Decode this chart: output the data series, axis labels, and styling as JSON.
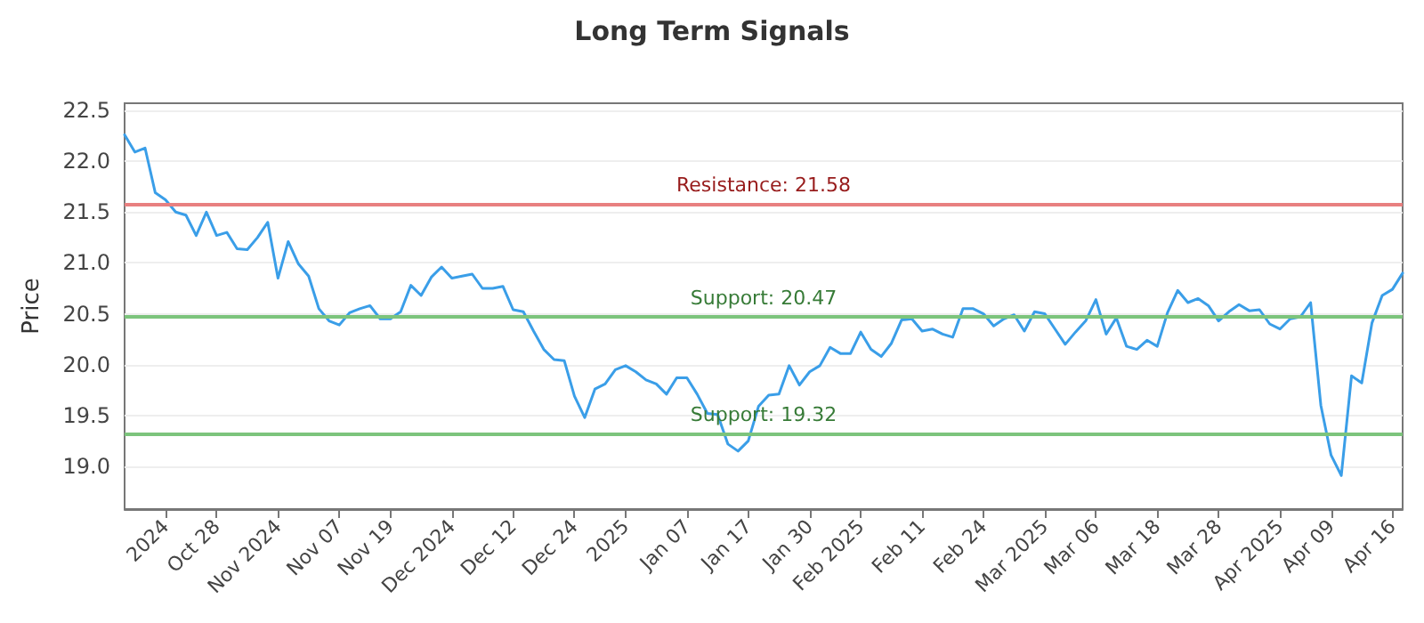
{
  "chart_data": {
    "type": "line",
    "title": "Long Term Signals",
    "ylabel": "Price",
    "categories": [
      null,
      null,
      null,
      null,
      "2024",
      null,
      null,
      null,
      null,
      "Oct 28",
      null,
      null,
      null,
      null,
      null,
      "Nov 2024",
      null,
      null,
      null,
      null,
      null,
      "Nov 07",
      null,
      null,
      null,
      null,
      "Nov 19",
      null,
      null,
      null,
      null,
      null,
      "Dec 2024",
      null,
      null,
      null,
      null,
      null,
      "Dec 12",
      null,
      null,
      null,
      null,
      null,
      "Dec 24",
      null,
      null,
      null,
      null,
      "2025",
      null,
      null,
      null,
      null,
      null,
      "Jan 07",
      null,
      null,
      null,
      null,
      null,
      "Jan 17",
      null,
      null,
      null,
      null,
      null,
      "Jan 30",
      null,
      null,
      null,
      null,
      "Feb 2025",
      null,
      null,
      null,
      null,
      null,
      "Feb 11",
      null,
      null,
      null,
      null,
      null,
      "Feb 24",
      null,
      null,
      null,
      null,
      null,
      "Mar 2025",
      null,
      null,
      null,
      null,
      "Mar 06",
      null,
      null,
      null,
      null,
      null,
      "Mar 18",
      null,
      null,
      null,
      null,
      null,
      "Mar 28",
      null,
      null,
      null,
      null,
      null,
      "Apr 2025",
      null,
      null,
      null,
      null,
      "Apr 09",
      null,
      null,
      null,
      null,
      null,
      "Apr 16",
      null
    ],
    "series": [
      {
        "color": "#3a9ee8",
        "values": [
          22.26,
          22.09,
          22.13,
          21.69,
          21.62,
          21.5,
          21.47,
          21.27,
          21.5,
          21.27,
          21.3,
          21.14,
          21.13,
          21.25,
          21.4,
          20.85,
          21.21,
          20.99,
          20.87,
          20.55,
          20.43,
          20.39,
          20.51,
          20.55,
          20.58,
          20.45,
          20.45,
          20.52,
          20.78,
          20.68,
          20.86,
          20.96,
          20.85,
          20.87,
          20.89,
          20.75,
          20.75,
          20.77,
          20.54,
          20.52,
          20.33,
          20.15,
          20.05,
          20.04,
          19.69,
          19.48,
          19.76,
          19.81,
          19.95,
          19.99,
          19.93,
          19.85,
          19.81,
          19.71,
          19.87,
          19.87,
          19.71,
          19.52,
          19.51,
          19.22,
          19.15,
          19.25,
          19.59,
          19.7,
          19.71,
          19.99,
          19.8,
          19.93,
          19.99,
          20.17,
          20.11,
          20.11,
          20.32,
          20.15,
          20.08,
          20.21,
          20.44,
          20.45,
          20.33,
          20.35,
          20.3,
          20.27,
          20.55,
          20.55,
          20.5,
          20.38,
          20.45,
          20.49,
          20.33,
          20.52,
          20.5,
          20.35,
          20.2,
          20.32,
          20.43,
          20.64,
          20.3,
          20.46,
          20.18,
          20.15,
          20.24,
          20.18,
          20.51,
          20.73,
          20.61,
          20.65,
          20.58,
          20.43,
          20.52,
          20.59,
          20.53,
          20.54,
          20.4,
          20.35,
          20.45,
          20.47,
          20.61,
          19.6,
          19.11,
          18.91,
          19.89,
          19.82,
          20.41,
          20.68,
          20.74,
          20.9
        ]
      }
    ],
    "ylim": [
      18.58,
      22.57
    ],
    "yticks": [
      {
        "value": 19,
        "label": "19.0"
      },
      {
        "value": 19.5,
        "label": "19.5"
      },
      {
        "value": 20,
        "label": "20.0"
      },
      {
        "value": 20.5,
        "label": "20.5"
      },
      {
        "value": 21,
        "label": "21.0"
      },
      {
        "value": 21.5,
        "label": "21.5"
      },
      {
        "value": 22,
        "label": "22.0"
      },
      {
        "value": 22.5,
        "label": "22.5"
      }
    ],
    "ref_lines": [
      {
        "axis": "y",
        "value": 21.58,
        "label": "Resistance: 21.58",
        "color": "#e88080"
      },
      {
        "axis": "y",
        "value": 20.47,
        "label": "Support: 20.47",
        "color": "#7cc47c"
      },
      {
        "axis": "y",
        "value": 19.32,
        "label": "Support: 19.32",
        "color": "#7cc47c"
      }
    ],
    "grid": "y",
    "marker": "none",
    "line_style": "solid"
  }
}
